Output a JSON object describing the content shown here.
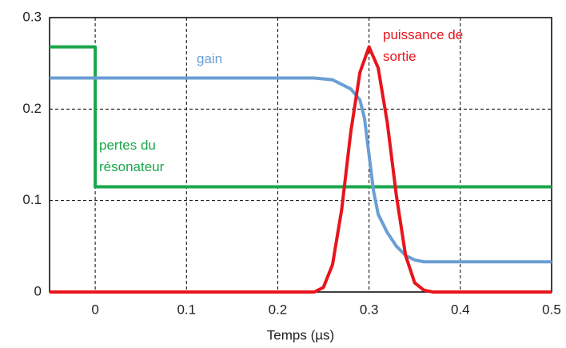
{
  "chart_data": {
    "type": "line",
    "xlabel": "Temps (µs)",
    "xlim": [
      -0.05,
      0.5
    ],
    "xticks": [
      0,
      0.1,
      0.2,
      0.3,
      0.4,
      0.5
    ],
    "ylim": [
      0,
      0.3
    ],
    "yticks": [
      0,
      0.1,
      0.2,
      0.3
    ],
    "grid": true,
    "series": [
      {
        "name": "pertes du résonateur",
        "color": "#1aa64a",
        "x": [
          -0.05,
          0,
          0,
          0.5
        ],
        "values": [
          0.268,
          0.268,
          0.115,
          0.115
        ]
      },
      {
        "name": "gain",
        "color": "#6a9fd4",
        "x": [
          -0.05,
          0.24,
          0.26,
          0.28,
          0.29,
          0.295,
          0.3,
          0.305,
          0.31,
          0.32,
          0.33,
          0.34,
          0.35,
          0.36,
          0.5
        ],
        "values": [
          0.234,
          0.234,
          0.232,
          0.222,
          0.21,
          0.19,
          0.15,
          0.11,
          0.085,
          0.065,
          0.05,
          0.04,
          0.035,
          0.033,
          0.033
        ]
      },
      {
        "name": "puissance de sortie",
        "color": "#e8141c",
        "x": [
          -0.05,
          0.24,
          0.25,
          0.26,
          0.27,
          0.28,
          0.29,
          0.3,
          0.31,
          0.32,
          0.33,
          0.34,
          0.35,
          0.36,
          0.37,
          0.5
        ],
        "values": [
          0,
          0,
          0.005,
          0.03,
          0.09,
          0.175,
          0.24,
          0.268,
          0.245,
          0.185,
          0.105,
          0.04,
          0.01,
          0.002,
          0,
          0
        ]
      }
    ]
  }
}
